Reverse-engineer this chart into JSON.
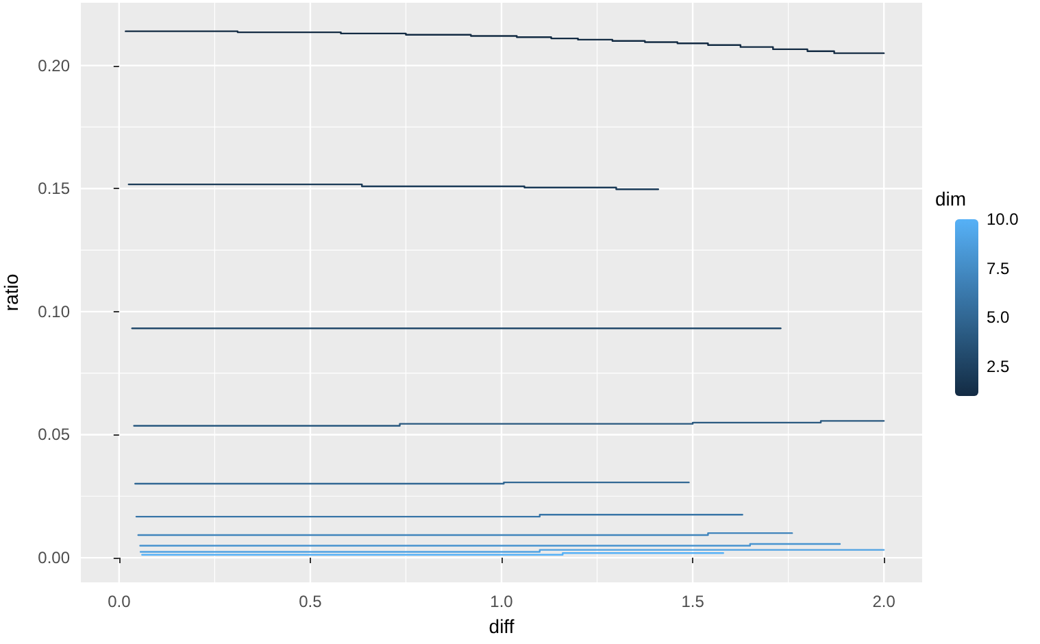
{
  "chart_data": {
    "type": "step",
    "xlabel": "diff",
    "ylabel": "ratio",
    "clabel": "dim",
    "clim": [
      1,
      10
    ],
    "cticks": [
      {
        "value": 2.5,
        "label": "2.5"
      },
      {
        "value": 5,
        "label": "5.0"
      },
      {
        "value": 7.5,
        "label": "7.5"
      },
      {
        "value": 10,
        "label": "10.0"
      }
    ],
    "xlim": [
      -0.1,
      2.1
    ],
    "ylim": [
      -0.01,
      0.2255
    ],
    "xticks": [
      {
        "value": 0,
        "label": "0.0"
      },
      {
        "value": 0.5,
        "label": "0.5"
      },
      {
        "value": 1,
        "label": "1.0"
      },
      {
        "value": 1.5,
        "label": "1.5"
      },
      {
        "value": 2,
        "label": "2.0"
      }
    ],
    "yticks": [
      {
        "value": 0,
        "label": "0.00"
      },
      {
        "value": 0.05,
        "label": "0.05"
      },
      {
        "value": 0.1,
        "label": "0.10"
      },
      {
        "value": 0.15,
        "label": "0.15"
      },
      {
        "value": 0.2,
        "label": "0.20"
      }
    ],
    "grid": true,
    "series": [
      {
        "color": "#132b43",
        "x": [
          0.017,
          0.31,
          0.58,
          0.75,
          0.92,
          1.04,
          1.13,
          1.2,
          1.29,
          1.375,
          1.46,
          1.54,
          1.625,
          1.71,
          1.8,
          1.87,
          2.0
        ],
        "values": [
          0.2139,
          0.2135,
          0.213,
          0.2125,
          0.212,
          0.2115,
          0.211,
          0.2105,
          0.21,
          0.2095,
          0.209,
          0.2083,
          0.2075,
          0.2066,
          0.2058,
          0.205,
          0.205
        ]
      },
      {
        "color": "#1a3a57",
        "x": [
          0.025,
          0.635,
          1.06,
          1.3,
          1.41
        ],
        "values": [
          0.1517,
          0.1509,
          0.1504,
          0.1497,
          0.1497
        ]
      },
      {
        "color": "#22496b",
        "x": [
          0.034,
          1.73
        ],
        "values": [
          0.0932,
          0.0932
        ]
      },
      {
        "color": "#29587f",
        "x": [
          0.039,
          0.734,
          1.5,
          1.835,
          2.0
        ],
        "values": [
          0.0536,
          0.0544,
          0.0549,
          0.0556,
          0.0556
        ]
      },
      {
        "color": "#316793",
        "x": [
          0.042,
          1.006,
          1.49
        ],
        "values": [
          0.0301,
          0.0306,
          0.0306
        ]
      },
      {
        "color": "#3875a7",
        "x": [
          0.045,
          1.1,
          1.63
        ],
        "values": [
          0.0167,
          0.0175,
          0.0175
        ]
      },
      {
        "color": "#4084bb",
        "x": [
          0.05,
          1.54,
          1.76
        ],
        "values": [
          0.0092,
          0.01,
          0.01
        ]
      },
      {
        "color": "#4793cf",
        "x": [
          0.055,
          1.65,
          1.885
        ],
        "values": [
          0.0049,
          0.0056,
          0.0056
        ]
      },
      {
        "color": "#4fa2e3",
        "x": [
          0.056,
          1.1,
          2.0
        ],
        "values": [
          0.0024,
          0.0032,
          0.0032
        ]
      },
      {
        "color": "#56b1f7",
        "x": [
          0.06,
          1.16,
          1.58
        ],
        "values": [
          0.0012,
          0.0019,
          0.0019
        ]
      }
    ]
  }
}
